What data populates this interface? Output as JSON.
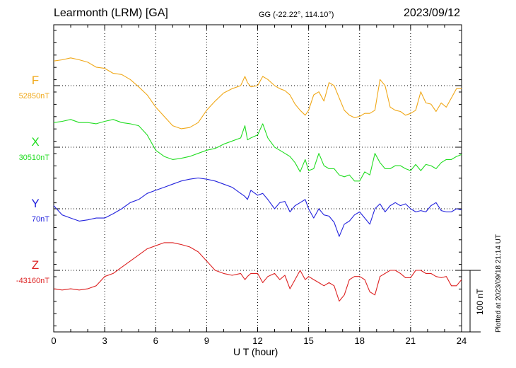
{
  "header": {
    "station": "Learmonth (LRM)  [GA]",
    "coords": "GG (-22.22°, 114.10°)",
    "date": "2023/09/12"
  },
  "footer": {
    "plotted": "Plotted at 2023/09/18 21:14 UT"
  },
  "chart_data": {
    "type": "line",
    "title": "Learmonth (LRM)  [GA]",
    "xlabel": "U T (hour)",
    "ylabel": "",
    "xlim": [
      0,
      24
    ],
    "xticks": [
      "0",
      "3",
      "6",
      "9",
      "12",
      "15",
      "18",
      "21",
      "24"
    ],
    "grid": true,
    "scale_bar": "100 nT",
    "series": [
      {
        "name": "F",
        "baseline_label": "52850nT",
        "color": "#f0a818",
        "x": [
          0,
          0.5,
          1,
          1.5,
          2,
          2.5,
          3,
          3.5,
          4,
          4.5,
          5,
          5.5,
          6,
          6.5,
          7,
          7.5,
          8,
          8.5,
          9,
          9.5,
          10,
          10.5,
          11,
          11.25,
          11.4,
          11.6,
          12,
          12.3,
          12.6,
          13,
          13.3,
          13.6,
          13.9,
          14.2,
          14.5,
          14.8,
          15,
          15.3,
          15.6,
          15.9,
          16.2,
          16.5,
          16.8,
          17.1,
          17.4,
          17.7,
          18,
          18.3,
          18.6,
          18.9,
          19.2,
          19.5,
          19.8,
          20.1,
          20.4,
          20.7,
          21,
          21.3,
          21.6,
          21.9,
          22.2,
          22.5,
          22.8,
          23.1,
          23.4,
          23.7,
          24
        ],
        "values": [
          40,
          42,
          45,
          42,
          38,
          30,
          28,
          20,
          18,
          10,
          -2,
          -15,
          -35,
          -50,
          -65,
          -70,
          -68,
          -60,
          -40,
          -25,
          -12,
          -5,
          0,
          15,
          5,
          -2,
          0,
          15,
          10,
          0,
          -5,
          -8,
          -15,
          -30,
          -40,
          -48,
          -40,
          -15,
          -10,
          -25,
          5,
          0,
          -20,
          -40,
          -48,
          -52,
          -50,
          -45,
          -45,
          -40,
          10,
          0,
          -35,
          -40,
          -42,
          -48,
          -45,
          -40,
          -10,
          -28,
          -30,
          -42,
          -28,
          -35,
          -20,
          -5,
          -5
        ]
      },
      {
        "name": "X",
        "baseline_label": "30510nT",
        "color": "#22dd22",
        "x": [
          0,
          0.5,
          1,
          1.5,
          2,
          2.5,
          3,
          3.5,
          4,
          4.5,
          5,
          5.5,
          6,
          6.5,
          7,
          7.5,
          8,
          8.5,
          9,
          9.5,
          10,
          10.5,
          11,
          11.25,
          11.4,
          11.6,
          12,
          12.3,
          12.6,
          13,
          13.3,
          13.6,
          13.9,
          14.2,
          14.5,
          14.8,
          15,
          15.3,
          15.6,
          15.9,
          16.2,
          16.5,
          16.8,
          17.1,
          17.4,
          17.7,
          18,
          18.3,
          18.6,
          18.9,
          19.2,
          19.5,
          19.8,
          20.1,
          20.4,
          20.7,
          21,
          21.3,
          21.6,
          21.9,
          22.2,
          22.5,
          22.8,
          23.1,
          23.4,
          23.7,
          24
        ],
        "values": [
          40,
          42,
          45,
          40,
          40,
          38,
          42,
          45,
          40,
          38,
          35,
          20,
          -5,
          -15,
          -20,
          -18,
          -15,
          -10,
          -5,
          -2,
          5,
          10,
          15,
          35,
          12,
          15,
          20,
          38,
          15,
          0,
          -5,
          -10,
          -15,
          -25,
          -40,
          -20,
          -38,
          -35,
          -10,
          -30,
          -35,
          -35,
          -45,
          -48,
          -45,
          -55,
          -55,
          -40,
          -45,
          -10,
          -25,
          -35,
          -35,
          -30,
          -30,
          -35,
          -38,
          -28,
          -38,
          -28,
          -30,
          -35,
          -25,
          -20,
          -20,
          -15,
          -12
        ]
      },
      {
        "name": "Y",
        "baseline_label": "70nT",
        "color": "#2222dd",
        "x": [
          0,
          0.5,
          1,
          1.5,
          2,
          2.5,
          3,
          3.5,
          4,
          4.5,
          5,
          5.5,
          6,
          6.5,
          7,
          7.5,
          8,
          8.5,
          9,
          9.5,
          10,
          10.5,
          11,
          11.25,
          11.4,
          11.6,
          12,
          12.3,
          12.6,
          13,
          13.3,
          13.6,
          13.9,
          14.2,
          14.5,
          14.8,
          15,
          15.3,
          15.6,
          15.9,
          16.2,
          16.5,
          16.8,
          17.1,
          17.4,
          17.7,
          18,
          18.3,
          18.6,
          18.9,
          19.2,
          19.5,
          19.8,
          20.1,
          20.4,
          20.7,
          21,
          21.3,
          21.6,
          21.9,
          22.2,
          22.5,
          22.8,
          23.1,
          23.4,
          23.7,
          24
        ],
        "values": [
          5,
          -10,
          -15,
          -20,
          -18,
          -15,
          -15,
          -8,
          0,
          10,
          15,
          25,
          30,
          35,
          40,
          45,
          48,
          50,
          48,
          45,
          40,
          35,
          25,
          20,
          15,
          30,
          22,
          25,
          15,
          0,
          10,
          12,
          -5,
          5,
          10,
          15,
          0,
          -15,
          0,
          -10,
          -12,
          -22,
          -45,
          -25,
          -20,
          -10,
          -5,
          -15,
          -25,
          0,
          8,
          -5,
          5,
          10,
          5,
          8,
          0,
          -5,
          -3,
          -5,
          5,
          10,
          -3,
          -5,
          -5,
          0,
          -2
        ]
      },
      {
        "name": "Z",
        "baseline_label": "-43160nT",
        "color": "#dd2222",
        "x": [
          0,
          0.5,
          1,
          1.5,
          2,
          2.5,
          3,
          3.5,
          4,
          4.5,
          5,
          5.5,
          6,
          6.5,
          7,
          7.5,
          8,
          8.5,
          9,
          9.5,
          10,
          10.5,
          11,
          11.25,
          11.4,
          11.6,
          12,
          12.3,
          12.6,
          13,
          13.3,
          13.6,
          13.9,
          14.2,
          14.5,
          14.8,
          15,
          15.3,
          15.6,
          15.9,
          16.2,
          16.5,
          16.8,
          17.1,
          17.4,
          17.7,
          18,
          18.3,
          18.6,
          18.9,
          19.2,
          19.5,
          19.8,
          20.1,
          20.4,
          20.7,
          21,
          21.3,
          21.6,
          21.9,
          22.2,
          22.5,
          22.8,
          23.1,
          23.4,
          23.7,
          24
        ],
        "values": [
          -30,
          -32,
          -30,
          -32,
          -30,
          -25,
          -10,
          -5,
          5,
          15,
          25,
          35,
          40,
          45,
          45,
          42,
          38,
          30,
          15,
          0,
          -5,
          -8,
          -5,
          -15,
          -10,
          -5,
          -5,
          -20,
          -10,
          -5,
          -15,
          -8,
          -30,
          -15,
          0,
          -15,
          -10,
          -15,
          -20,
          -25,
          -20,
          -25,
          -50,
          -40,
          -15,
          -10,
          -10,
          -15,
          -35,
          -40,
          -10,
          -5,
          0,
          0,
          -5,
          -12,
          -12,
          0,
          0,
          -5,
          -5,
          -10,
          -12,
          -10,
          -25,
          -25,
          -15
        ]
      }
    ]
  }
}
